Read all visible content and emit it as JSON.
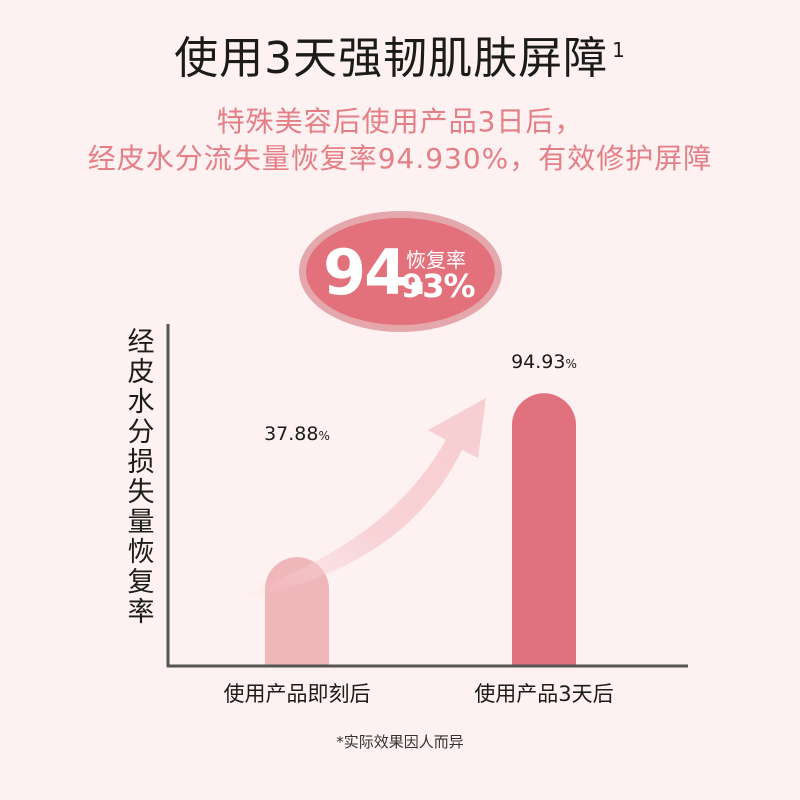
{
  "title": "使用3天强韧肌肤屏障",
  "title_sup": "1",
  "subtitle_line1": "特殊美容后使用产品3日后，",
  "subtitle_line2": "经皮水分流失量恢复率94.930%，有效修护屏障",
  "badge": {
    "big": "94.",
    "small": "93%",
    "label": "恢复率",
    "color": "#e3717c"
  },
  "footnote": "*实际效果因人而异",
  "chart_data": {
    "type": "bar",
    "ylabel": "经皮水分损失量恢复率",
    "categories": [
      "使用产品即刻后",
      "使用产品3天后"
    ],
    "values": [
      37.88,
      94.93
    ],
    "value_labels": [
      "37.88",
      "94.93"
    ],
    "value_unit": "%",
    "ylim": [
      0,
      110
    ],
    "colors": [
      "#f0b7ba",
      "#e1727d"
    ],
    "arrow_color": "#f7cdd1",
    "axis_color": "#555555",
    "grid": false
  }
}
